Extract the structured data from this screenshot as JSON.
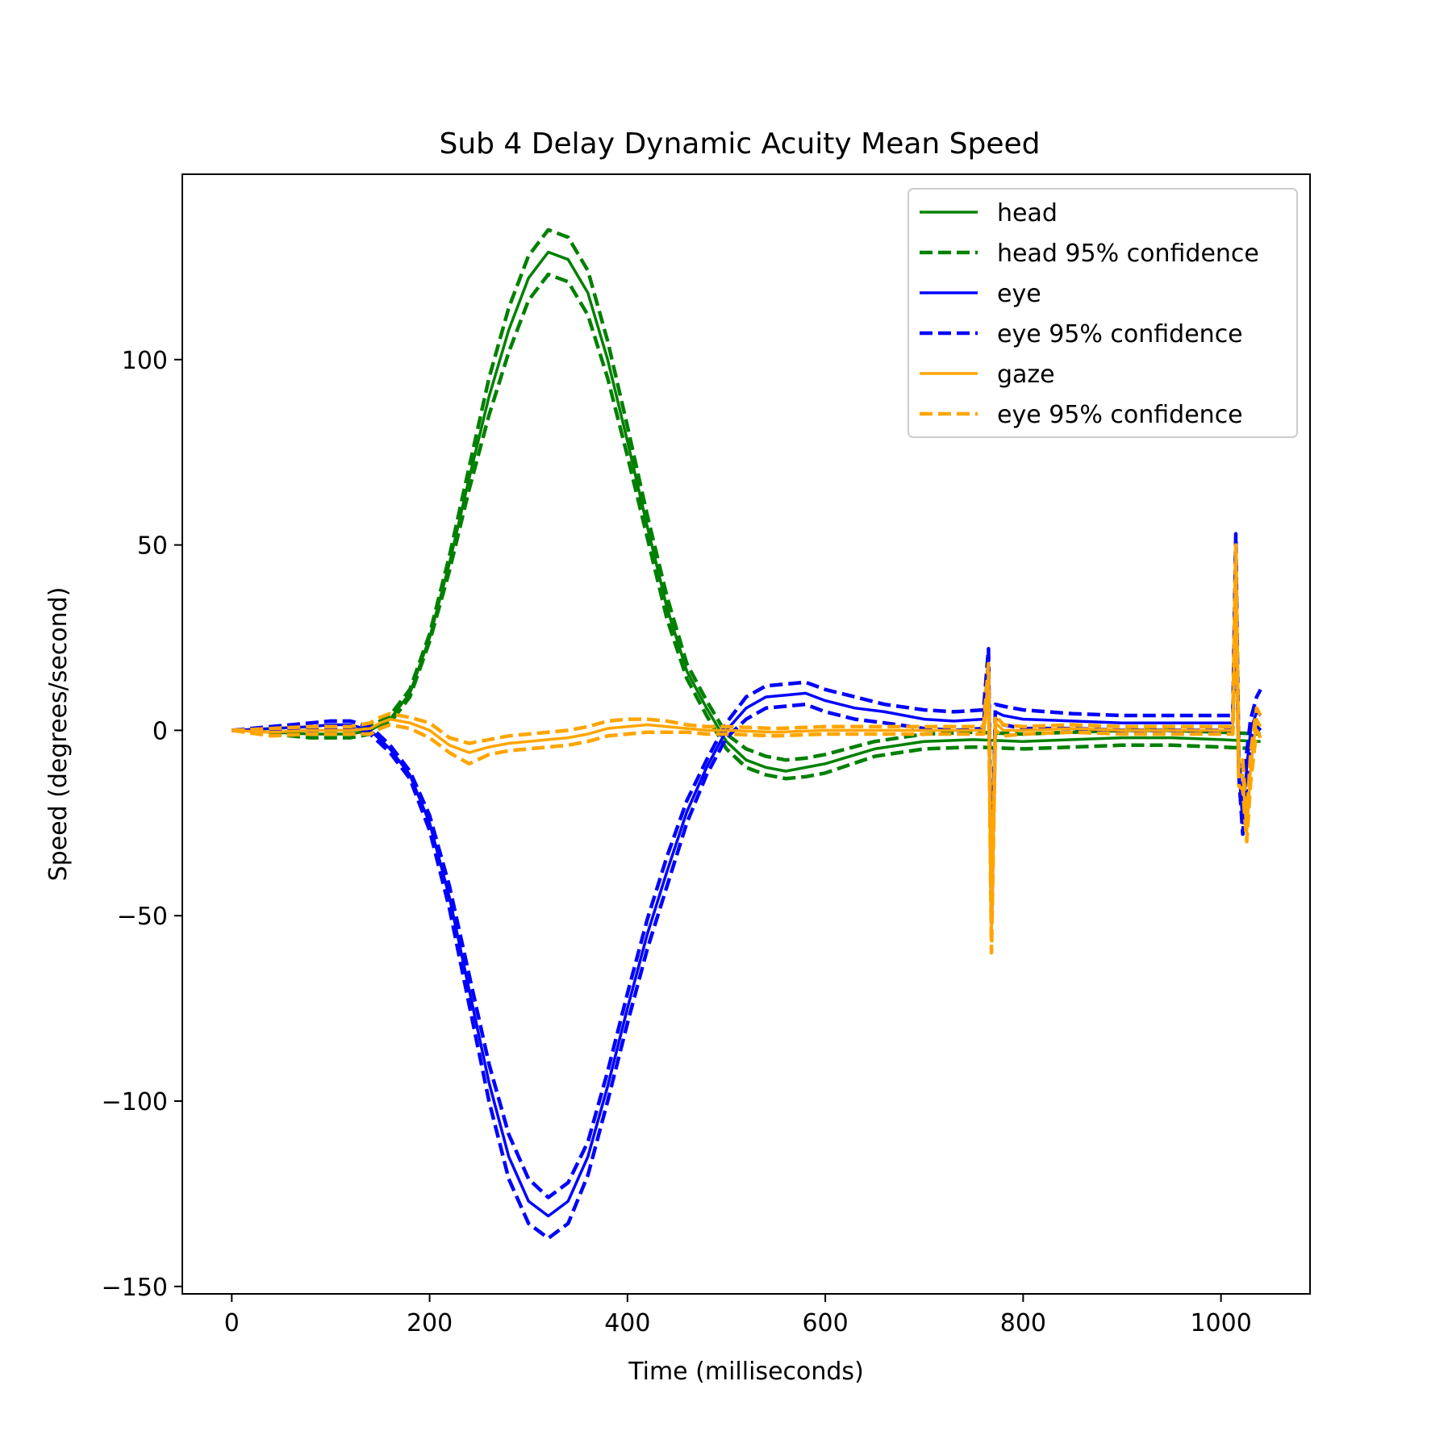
{
  "chart_data": {
    "type": "line",
    "title": "Sub 4 Delay Dynamic Acuity Mean Speed",
    "xlabel": "Time (milliseconds)",
    "ylabel": "Speed (degrees/second)",
    "xlim": [
      -50,
      1090
    ],
    "ylim": [
      -152,
      150
    ],
    "xticks": [
      0,
      200,
      400,
      600,
      800,
      1000
    ],
    "xtick_labels": [
      "0",
      "200",
      "400",
      "600",
      "800",
      "1000"
    ],
    "yticks": [
      -150,
      -100,
      -50,
      0,
      50,
      100
    ],
    "ytick_labels": [
      "−150",
      "−100",
      "−50",
      "0",
      "50",
      "100"
    ],
    "grid": false,
    "legend_position": "top-right",
    "series": [
      {
        "name": "head",
        "color": "#008000",
        "style": "solid",
        "x": [
          0,
          40,
          80,
          120,
          140,
          160,
          180,
          200,
          220,
          240,
          260,
          280,
          300,
          320,
          340,
          360,
          380,
          400,
          420,
          440,
          460,
          480,
          500,
          520,
          540,
          560,
          580,
          600,
          650,
          700,
          750,
          800,
          850,
          900,
          950,
          1000,
          1040
        ],
        "y": [
          0,
          -0.5,
          -1,
          -1,
          0,
          3,
          10,
          25,
          45,
          68,
          90,
          108,
          122,
          129,
          127,
          118,
          100,
          78,
          55,
          33,
          16,
          6,
          -3,
          -8,
          -10,
          -11,
          -10,
          -9,
          -5,
          -3,
          -2.5,
          -3,
          -2.5,
          -2,
          -2,
          -2.5,
          -3
        ]
      },
      {
        "name": "head 95% confidence",
        "color": "#008000",
        "style": "dashed",
        "x": [
          0,
          40,
          80,
          120,
          140,
          160,
          180,
          200,
          220,
          240,
          260,
          280,
          300,
          320,
          340,
          360,
          380,
          400,
          420,
          440,
          460,
          480,
          500,
          520,
          540,
          560,
          580,
          600,
          650,
          700,
          750,
          800,
          850,
          900,
          950,
          1000,
          1040
        ],
        "y": [
          0,
          0,
          0,
          0,
          1,
          4,
          11,
          26,
          47,
          71,
          95,
          114,
          128,
          135,
          133,
          124,
          105,
          82,
          58,
          36,
          18,
          8,
          -1,
          -5,
          -7,
          -8,
          -7.5,
          -6.5,
          -3,
          -1,
          -0.5,
          -1,
          -0.5,
          0,
          0,
          -0.5,
          -1
        ]
      },
      {
        "name": "head 95% confidence",
        "color": "#008000",
        "style": "dashed",
        "legend": false,
        "x": [
          0,
          40,
          80,
          120,
          140,
          160,
          180,
          200,
          220,
          240,
          260,
          280,
          300,
          320,
          340,
          360,
          380,
          400,
          420,
          440,
          460,
          480,
          500,
          520,
          540,
          560,
          580,
          600,
          650,
          700,
          750,
          800,
          850,
          900,
          950,
          1000,
          1040
        ],
        "y": [
          0,
          -1,
          -2,
          -2,
          -1,
          2,
          9,
          24,
          43,
          65,
          85,
          102,
          116,
          123,
          121,
          112,
          95,
          74,
          52,
          30,
          14,
          4,
          -5,
          -10,
          -12,
          -13,
          -12.5,
          -11.5,
          -7,
          -5,
          -4.5,
          -5,
          -4.5,
          -4,
          -4,
          -4.5,
          -5
        ]
      },
      {
        "name": "eye",
        "color": "#0000ff",
        "style": "solid",
        "x": [
          0,
          40,
          80,
          100,
          120,
          140,
          160,
          180,
          200,
          220,
          240,
          260,
          280,
          300,
          320,
          340,
          360,
          380,
          400,
          420,
          440,
          460,
          480,
          500,
          520,
          540,
          560,
          580,
          600,
          630,
          660,
          700,
          730,
          760,
          765,
          768,
          772,
          780,
          800,
          850,
          900,
          950,
          1000,
          1012,
          1015,
          1018,
          1022,
          1026,
          1030,
          1036,
          1040
        ],
        "y": [
          0,
          0.5,
          1,
          1.5,
          1.5,
          0,
          -5,
          -12,
          -25,
          -45,
          -70,
          -95,
          -115,
          -127,
          -131,
          -127,
          -115,
          -96,
          -75,
          -55,
          -38,
          -22,
          -10,
          0,
          6,
          9,
          9.5,
          10,
          8,
          6,
          5,
          3,
          2.5,
          3,
          20,
          -50,
          5,
          4,
          3,
          2.5,
          2,
          2,
          2,
          2,
          45,
          -10,
          -25,
          -10,
          0,
          5,
          4
        ]
      },
      {
        "name": "eye 95% confidence",
        "color": "#0000ff",
        "style": "dashed",
        "x": [
          0,
          40,
          80,
          100,
          120,
          140,
          160,
          180,
          200,
          220,
          240,
          260,
          280,
          300,
          320,
          340,
          360,
          380,
          400,
          420,
          440,
          460,
          480,
          500,
          520,
          540,
          560,
          580,
          600,
          630,
          660,
          700,
          730,
          760,
          765,
          768,
          772,
          780,
          800,
          850,
          900,
          950,
          1000,
          1012,
          1015,
          1018,
          1022,
          1026,
          1030,
          1036,
          1040
        ],
        "y": [
          0,
          1,
          2,
          2.5,
          2.5,
          1,
          -4,
          -11,
          -23,
          -42,
          -66,
          -90,
          -109,
          -121,
          -126,
          -122,
          -111,
          -92,
          -71,
          -51,
          -34,
          -19,
          -8,
          2,
          9,
          12,
          12.5,
          13,
          11,
          9,
          7,
          5.5,
          5,
          5.5,
          22,
          -48,
          7,
          6.5,
          5.5,
          4.5,
          4,
          4,
          4,
          4,
          53,
          -8,
          -20,
          -6,
          3,
          9,
          11
        ]
      },
      {
        "name": "eye 95% confidence",
        "color": "#0000ff",
        "style": "dashed",
        "legend": false,
        "x": [
          0,
          40,
          80,
          100,
          120,
          140,
          160,
          180,
          200,
          220,
          240,
          260,
          280,
          300,
          320,
          340,
          360,
          380,
          400,
          420,
          440,
          460,
          480,
          500,
          520,
          540,
          560,
          580,
          600,
          630,
          660,
          700,
          730,
          760,
          765,
          768,
          772,
          780,
          800,
          850,
          900,
          950,
          1000,
          1012,
          1015,
          1018,
          1022,
          1026,
          1030,
          1036,
          1040
        ],
        "y": [
          0,
          0,
          0,
          0.5,
          0.5,
          -1,
          -6,
          -13,
          -27,
          -48,
          -74,
          -100,
          -121,
          -133,
          -137,
          -133,
          -120,
          -100,
          -79,
          -59,
          -42,
          -25,
          -12,
          -2,
          3,
          6,
          6.5,
          7,
          5,
          3,
          2,
          0.5,
          0,
          0.5,
          17,
          -52,
          3,
          1.5,
          0.5,
          0.5,
          0,
          0,
          0,
          0,
          38,
          -12,
          -28,
          -14,
          -3,
          1,
          0
        ]
      },
      {
        "name": "gaze",
        "color": "#ffa500",
        "style": "solid",
        "x": [
          0,
          40,
          80,
          120,
          140,
          150,
          160,
          180,
          200,
          220,
          240,
          260,
          280,
          300,
          320,
          340,
          360,
          380,
          400,
          420,
          440,
          460,
          480,
          500,
          550,
          600,
          650,
          700,
          730,
          760,
          765,
          768,
          772,
          780,
          800,
          850,
          900,
          950,
          1000,
          1012,
          1015,
          1018,
          1022,
          1026,
          1030,
          1036,
          1040
        ],
        "y": [
          0,
          -0.5,
          0,
          0,
          0.5,
          2,
          3,
          2,
          0,
          -4,
          -6,
          -4.5,
          -3.5,
          -3,
          -2.5,
          -2,
          -1,
          0.5,
          1,
          1.5,
          1,
          0.5,
          0,
          0,
          -0.5,
          0,
          0,
          0,
          0,
          0,
          15,
          -55,
          2,
          0,
          0,
          0.5,
          0,
          0,
          0,
          0,
          48,
          -12,
          -12,
          -28,
          -10,
          3,
          1
        ]
      },
      {
        "name": "eye 95% confidence",
        "color": "#ffa500",
        "style": "dashed",
        "x": [
          0,
          40,
          80,
          120,
          140,
          150,
          160,
          180,
          200,
          220,
          240,
          260,
          280,
          300,
          320,
          340,
          360,
          380,
          400,
          420,
          440,
          460,
          480,
          500,
          550,
          600,
          650,
          700,
          730,
          760,
          765,
          768,
          772,
          780,
          800,
          850,
          900,
          950,
          1000,
          1012,
          1015,
          1018,
          1022,
          1026,
          1030,
          1036,
          1040
        ],
        "y": [
          0,
          0.5,
          1,
          1,
          2,
          3.5,
          4.5,
          3.5,
          2,
          -2,
          -3.5,
          -2.5,
          -1.5,
          -1,
          -0.5,
          0,
          1,
          2.5,
          3,
          3,
          2.5,
          1.5,
          1,
          1,
          0.5,
          1,
          1,
          1,
          1,
          1,
          18,
          -52,
          4,
          1.5,
          1,
          1.5,
          1,
          1,
          1,
          1,
          50,
          -10,
          -8,
          -24,
          -6,
          6,
          4
        ]
      },
      {
        "name": "eye 95% confidence",
        "color": "#ffa500",
        "style": "dashed",
        "legend": false,
        "x": [
          0,
          40,
          80,
          120,
          140,
          150,
          160,
          180,
          200,
          220,
          240,
          260,
          280,
          300,
          320,
          340,
          360,
          380,
          400,
          420,
          440,
          460,
          480,
          500,
          550,
          600,
          650,
          700,
          730,
          760,
          765,
          768,
          772,
          780,
          800,
          850,
          900,
          950,
          1000,
          1012,
          1015,
          1018,
          1022,
          1026,
          1030,
          1036,
          1040
        ],
        "y": [
          0,
          -1.5,
          -1,
          -1,
          -1,
          0.5,
          1.5,
          0.5,
          -2,
          -6,
          -9,
          -6.5,
          -5.5,
          -5,
          -4.5,
          -4,
          -3,
          -1.5,
          -1,
          -0.5,
          -0.5,
          -0.5,
          -1,
          -1,
          -1.5,
          -1,
          -1,
          -1,
          -1,
          -1,
          12,
          -60,
          0,
          -1.5,
          -1,
          -0.5,
          -1,
          -1,
          -1,
          -1,
          44,
          -15,
          -16,
          -30,
          -14,
          0,
          -2
        ]
      }
    ]
  }
}
